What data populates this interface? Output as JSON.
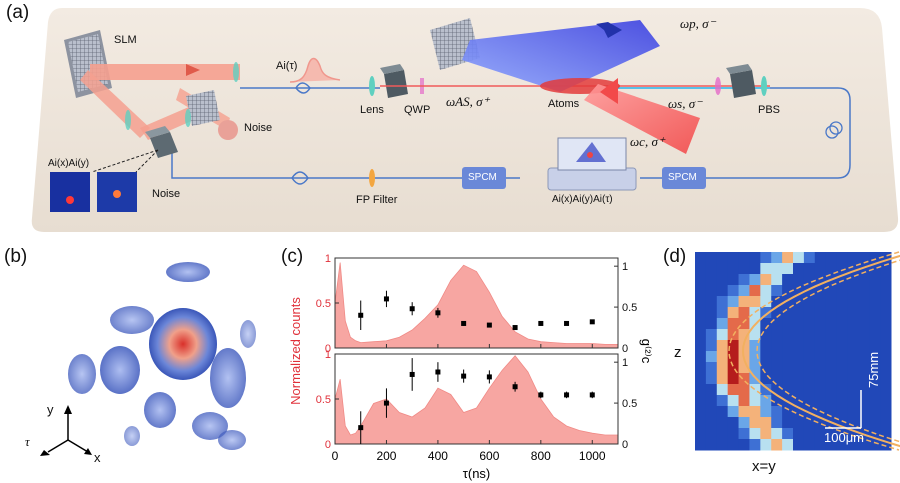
{
  "panels": {
    "a": "(a)",
    "b": "(b)",
    "c": "(c)",
    "d": "(d)"
  },
  "setup": {
    "slm": "SLM",
    "ai_tau": "Ai(τ)",
    "noise1": "Noise",
    "noise2": "Noise",
    "aixy": "Ai(x)Ai(y)",
    "lens": "Lens",
    "qwp": "QWP",
    "atoms": "Atoms",
    "pbs": "PBS",
    "fp": "FP Filter",
    "spcm1": "SPCM",
    "spcm2": "SPCM",
    "monitor": "Ai(x)Ai(y)Ai(τ)",
    "omega_p": "ωp, σ⁻",
    "omega_as": "ωAS, σ⁺",
    "omega_s": "ωs, σ⁻",
    "omega_c": "ωc, σ⁺"
  },
  "axes3d": {
    "y": "y",
    "tau": "τ",
    "x": "x"
  },
  "panel_d": {
    "ylabel": "z",
    "xlabel": "x=y",
    "scale_v": "75mm",
    "scale_h": "100μm"
  },
  "chart_data": {
    "type": "bar",
    "xlabel": "τ(ns)",
    "ylabel_left": "Normalized counts",
    "ylabel_right": "g⁽²⁾c",
    "xlim": [
      0,
      1100
    ],
    "xticks": [
      0,
      200,
      400,
      600,
      800,
      1000
    ],
    "ylim_left": [
      0,
      1
    ],
    "yticks_left": [
      0,
      0.5,
      1
    ],
    "ylim_right": [
      0,
      1.1
    ],
    "yticks_right": [
      0,
      0.5,
      1
    ],
    "panels": [
      {
        "counts_x": [
          0,
          20,
          40,
          60,
          80,
          100,
          150,
          200,
          250,
          300,
          350,
          400,
          450,
          500,
          550,
          600,
          650,
          700,
          750,
          800,
          850,
          900,
          950,
          1000,
          1050,
          1100
        ],
        "counts_y": [
          0.5,
          0.95,
          0.3,
          0.12,
          0.08,
          0.06,
          0.07,
          0.08,
          0.12,
          0.2,
          0.33,
          0.48,
          0.75,
          0.92,
          0.85,
          0.62,
          0.35,
          0.18,
          0.1,
          0.07,
          0.06,
          0.05,
          0.05,
          0.05,
          0.04,
          0.04
        ],
        "g2_x": [
          100,
          200,
          300,
          400,
          500,
          600,
          700,
          800,
          900,
          1000
        ],
        "g2_y": [
          0.4,
          0.6,
          0.48,
          0.43,
          0.3,
          0.28,
          0.25,
          0.3,
          0.3,
          0.32
        ],
        "g2_err": [
          0.18,
          0.1,
          0.08,
          0.06,
          0.03,
          0.02,
          0.02,
          0.02,
          0.02,
          0.02
        ]
      },
      {
        "counts_x": [
          0,
          20,
          40,
          60,
          80,
          100,
          150,
          200,
          250,
          300,
          350,
          400,
          450,
          500,
          550,
          600,
          650,
          700,
          750,
          800,
          850,
          900,
          950,
          1000,
          1050,
          1100
        ],
        "counts_y": [
          0.5,
          0.72,
          0.2,
          0.1,
          0.12,
          0.2,
          0.45,
          0.5,
          0.35,
          0.3,
          0.4,
          0.62,
          0.55,
          0.35,
          0.4,
          0.62,
          0.82,
          0.98,
          0.8,
          0.5,
          0.3,
          0.2,
          0.15,
          0.12,
          0.1,
          0.1
        ],
        "g2_x": [
          100,
          200,
          300,
          400,
          500,
          600,
          700,
          800,
          900,
          1000
        ],
        "g2_y": [
          0.2,
          0.5,
          0.85,
          0.88,
          0.83,
          0.82,
          0.7,
          0.6,
          0.6,
          0.6
        ],
        "g2_err": [
          0.2,
          0.18,
          0.2,
          0.12,
          0.08,
          0.08,
          0.06,
          0.04,
          0.04,
          0.04
        ]
      }
    ]
  }
}
